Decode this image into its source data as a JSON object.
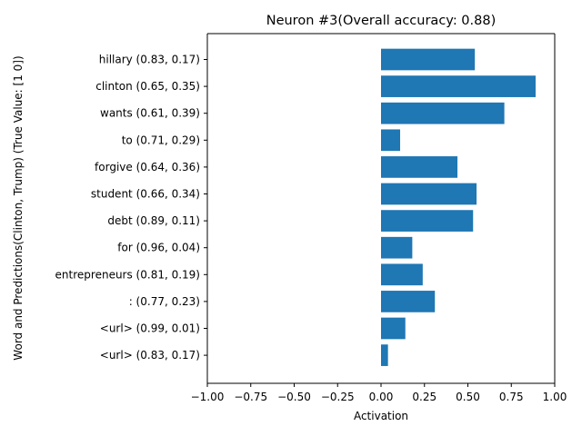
{
  "chart_data": {
    "type": "bar",
    "orientation": "horizontal",
    "title": "Neuron #3(Overall accuracy: 0.88)",
    "xlabel": "Activation",
    "ylabel": "Word and Predictions(Clinton, Trump) (True Value: [1 0])",
    "xlim": [
      -1.0,
      1.0
    ],
    "xticks": [
      "−1.00",
      "−0.75",
      "−0.50",
      "−0.25",
      "0.00",
      "0.25",
      "0.50",
      "0.75",
      "1.00"
    ],
    "xtick_values": [
      -1.0,
      -0.75,
      -0.5,
      -0.25,
      0.0,
      0.25,
      0.5,
      0.75,
      1.0
    ],
    "grid": false,
    "bar_color": "#1f77b4",
    "categories": [
      "hillary (0.83, 0.17)",
      "clinton (0.65, 0.35)",
      "wants (0.61, 0.39)",
      "to (0.71, 0.29)",
      "forgive (0.64, 0.36)",
      "student (0.66, 0.34)",
      "debt (0.89, 0.11)",
      "for (0.96, 0.04)",
      "entrepreneurs (0.81, 0.19)",
      ": (0.77, 0.23)",
      "<url> (0.99, 0.01)",
      "<url> (0.83, 0.17)"
    ],
    "values": [
      0.54,
      0.89,
      0.71,
      0.11,
      0.44,
      0.55,
      0.53,
      0.18,
      0.24,
      0.31,
      0.14,
      0.04
    ]
  }
}
